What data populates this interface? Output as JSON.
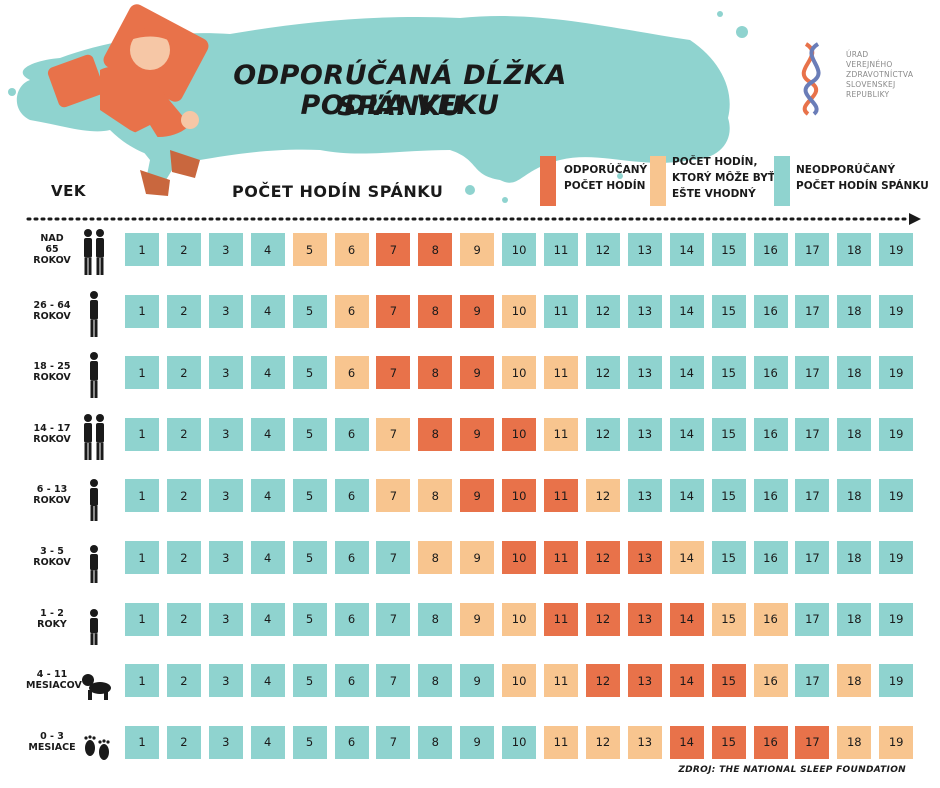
{
  "title": {
    "line1": "ODPORÚČANÁ DĹŽKA SPÁNKU",
    "line2": "PODĽA VEKU"
  },
  "logo": {
    "lines": [
      "ÚRAD",
      "VEREJNÉHO",
      "ZDRAVOTNÍCTVA",
      "SLOVENSKEJ",
      "REPUBLIKY"
    ]
  },
  "headers": {
    "age": "VEK",
    "hours": "POČET HODÍN SPÁNKU"
  },
  "legend": [
    {
      "key": "recommended",
      "lines": [
        "ODPORÚČANÝ",
        "POČET HODÍN"
      ],
      "color": "#e8724a"
    },
    {
      "key": "appropriate",
      "lines": [
        "POČET HODÍN,",
        "KTORÝ MÔŽE BYŤ",
        "EŠTE VHODNÝ"
      ],
      "color": "#f8c58f"
    },
    {
      "key": "not_recommended",
      "lines": [
        "NEODPORÚČANÝ",
        "POČET HODÍN SPÁNKU"
      ],
      "color": "#8fd3cf"
    }
  ],
  "source": "ZDROJ: THE NATIONAL SLEEP FOUNDATION",
  "colors": {
    "recommended": "#e8724a",
    "appropriate": "#f8c58f",
    "not_recommended": "#8fd3cf",
    "blob": "#8fd3cf"
  },
  "chart_data": {
    "type": "table",
    "columns": [
      1,
      2,
      3,
      4,
      5,
      6,
      7,
      8,
      9,
      10,
      11,
      12,
      13,
      14,
      15,
      16,
      17,
      18,
      19
    ],
    "rows": [
      {
        "label": [
          "NAD",
          "65",
          "ROKOV"
        ],
        "icon": "elderly-couple-icon",
        "recommended": [
          7,
          8
        ],
        "appropriate": [
          5,
          6,
          9
        ]
      },
      {
        "label": [
          "26 - 64",
          "ROKOV"
        ],
        "icon": "adult-man-icon",
        "recommended": [
          7,
          8,
          9
        ],
        "appropriate": [
          6,
          10
        ]
      },
      {
        "label": [
          "18 - 25",
          "ROKOV"
        ],
        "icon": "young-woman-icon",
        "recommended": [
          7,
          8,
          9
        ],
        "appropriate": [
          6,
          10,
          11
        ]
      },
      {
        "label": [
          "14 - 17",
          "ROKOV"
        ],
        "icon": "teen-couple-icon",
        "recommended": [
          8,
          9,
          10
        ],
        "appropriate": [
          7,
          11
        ]
      },
      {
        "label": [
          "6 - 13",
          "ROKOV"
        ],
        "icon": "child-icon",
        "recommended": [
          9,
          10,
          11
        ],
        "appropriate": [
          7,
          8,
          12
        ]
      },
      {
        "label": [
          "3 - 5",
          "ROKOV"
        ],
        "icon": "preschooler-icon",
        "recommended": [
          10,
          11,
          12,
          13
        ],
        "appropriate": [
          8,
          9,
          14
        ]
      },
      {
        "label": [
          "1 - 2",
          "ROKY"
        ],
        "icon": "toddler-icon",
        "recommended": [
          11,
          12,
          13,
          14
        ],
        "appropriate": [
          9,
          10,
          15,
          16
        ]
      },
      {
        "label": [
          "4 - 11",
          "MESIACOV"
        ],
        "icon": "crawling-baby-icon",
        "recommended": [
          12,
          13,
          14,
          15
        ],
        "appropriate": [
          10,
          11,
          16,
          18
        ]
      },
      {
        "label": [
          "0 - 3",
          "MESIACE"
        ],
        "icon": "baby-feet-icon",
        "recommended": [
          14,
          15,
          16,
          17
        ],
        "appropriate": [
          11,
          12,
          13,
          18,
          19
        ]
      }
    ]
  }
}
